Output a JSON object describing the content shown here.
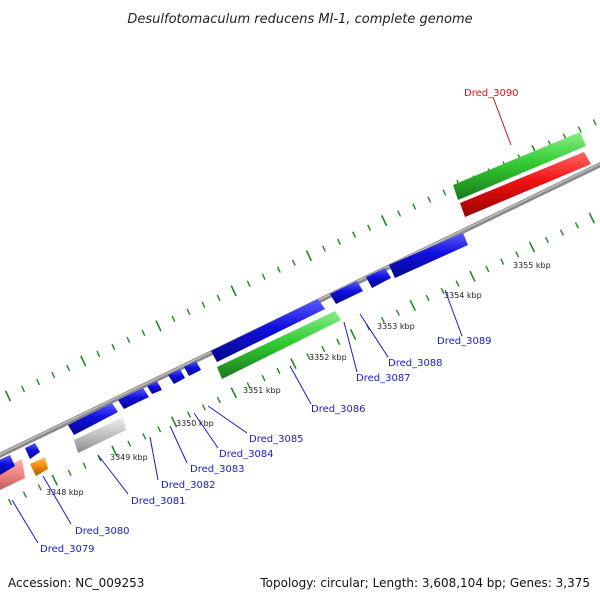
{
  "title": "Desulfotomaculum reducens MI-1, complete genome",
  "footer": {
    "accession": "Accession: NC_009253",
    "summary": "Topology: circular; Length: 3,608,104 bp; Genes: 3,375"
  },
  "colors": {
    "forward_gene": "#1010e0",
    "highlight_gene": "#33cc33",
    "selected_gene": "#ee1111",
    "rna_gene": "#f08080",
    "other_gene": "#c0c0c0",
    "orange_gene": "#f08c00",
    "backbone": "#808080",
    "tick": "#1e8a1e",
    "label": "#1a1acc",
    "selected_label": "#dd1111"
  },
  "kbp_labels": [
    "3348 kbp",
    "3349 kbp",
    "3350 kbp",
    "3351 kbp",
    "3352 kbp",
    "3353 kbp",
    "3354 kbp",
    "3355 kbp"
  ],
  "genes": [
    {
      "id": "Dred_3079",
      "color": "blue"
    },
    {
      "id": "Dred_3080",
      "color": "blue"
    },
    {
      "id": "Dred_3081",
      "color": "blue"
    },
    {
      "id": "Dred_3082",
      "color": "blue"
    },
    {
      "id": "Dred_3083",
      "color": "blue"
    },
    {
      "id": "Dred_3084",
      "color": "blue"
    },
    {
      "id": "Dred_3085",
      "color": "blue"
    },
    {
      "id": "Dred_3086",
      "color": "blue"
    },
    {
      "id": "Dred_3087",
      "color": "blue"
    },
    {
      "id": "Dred_3088",
      "color": "blue"
    },
    {
      "id": "Dred_3089",
      "color": "blue"
    },
    {
      "id": "Dred_3090",
      "color": "red"
    }
  ]
}
